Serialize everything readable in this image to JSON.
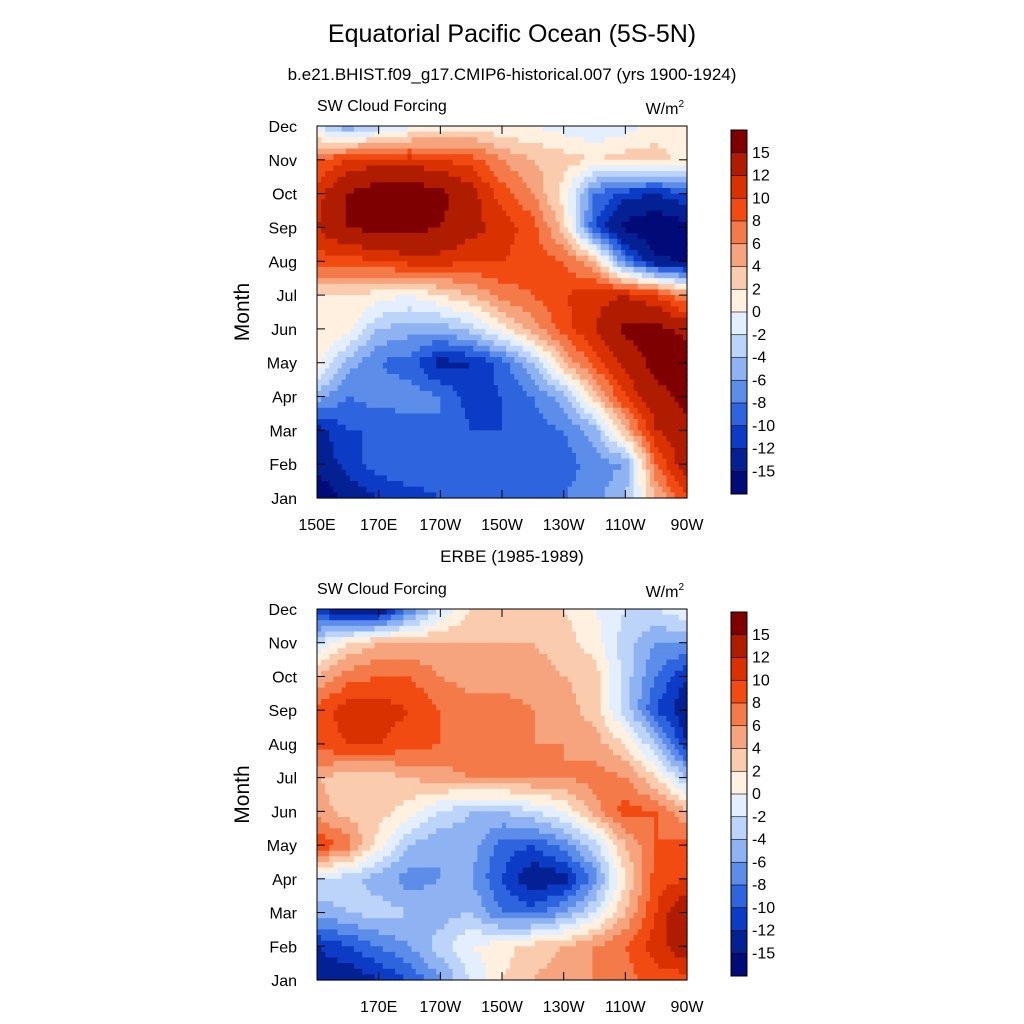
{
  "main_title": "Equatorial Pacific Ocean (5S-5N)",
  "chart_data": [
    {
      "type": "heatmap",
      "subtitle": "b.e21.BHIST.f09_g17.CMIP6-historical.007 (yrs 1900-1924)",
      "left_label": "SW Cloud Forcing",
      "units": "W/m",
      "units_sup": "2",
      "ylabel": "Month",
      "xlabel": "",
      "x_ticks": [
        "150E",
        "170E",
        "170W",
        "150W",
        "130W",
        "110W",
        "90W"
      ],
      "x_values": [
        150,
        170,
        190,
        210,
        230,
        250,
        270
      ],
      "xlim": [
        150,
        270
      ],
      "y_ticks": [
        "Jan",
        "Feb",
        "Mar",
        "Apr",
        "May",
        "Jun",
        "Jul",
        "Aug",
        "Sep",
        "Oct",
        "Nov",
        "Dec"
      ],
      "colorbar_labels": [
        "15",
        "12",
        "10",
        "8",
        "6",
        "4",
        "2",
        "0",
        "-2",
        "-4",
        "-6",
        "-8",
        "-10",
        "-12",
        "-15"
      ],
      "values": [
        [
          -18,
          -14,
          -12,
          -11,
          -10,
          -10,
          -10,
          -9,
          -8,
          -7,
          -4,
          4,
          10
        ],
        [
          -14,
          -11,
          -9,
          -8,
          -9,
          -10,
          -10,
          -9,
          -9,
          -7,
          -6,
          8,
          14
        ],
        [
          -13,
          -10,
          -10,
          -9,
          -8,
          -10,
          -10,
          -9,
          -8,
          -5,
          4,
          12,
          14
        ],
        [
          -5,
          -8,
          -7,
          -7,
          -8,
          -11,
          -10,
          -8,
          -5,
          3,
          10,
          14,
          16
        ],
        [
          1,
          -5,
          -8,
          -9,
          -13,
          -12,
          -9,
          -4,
          4,
          9,
          13,
          16,
          17
        ],
        [
          2,
          1,
          -4,
          -5,
          -5,
          -3,
          1,
          5,
          9,
          12,
          16,
          16,
          14
        ],
        [
          2,
          2,
          1,
          0,
          2,
          4,
          7,
          8,
          10,
          11,
          12,
          10,
          6
        ],
        [
          9,
          9,
          10,
          11,
          11,
          10,
          10,
          9,
          8,
          4,
          -8,
          -14,
          -16
        ],
        [
          12,
          15,
          16,
          16,
          15,
          13,
          11,
          9,
          3,
          -10,
          -16,
          -18,
          -16
        ],
        [
          11,
          15,
          17,
          17,
          16,
          13,
          9,
          6,
          1,
          -8,
          -11,
          -12,
          -10
        ],
        [
          8,
          10,
          11,
          11,
          10,
          9,
          6,
          4,
          3,
          2,
          3,
          3,
          1
        ],
        [
          -2,
          -6,
          -3,
          -1,
          0,
          1,
          0,
          0,
          -1,
          -2,
          -1,
          1,
          0
        ]
      ]
    },
    {
      "type": "heatmap",
      "subtitle": "ERBE (1985-1989)",
      "left_label": "SW Cloud Forcing",
      "units": "W/m",
      "units_sup": "2",
      "ylabel": "Month",
      "xlabel": "",
      "x_ticks": [
        "170E",
        "170W",
        "150W",
        "130W",
        "110W",
        "90W"
      ],
      "x_values": [
        170,
        190,
        210,
        230,
        250,
        270
      ],
      "xlim": [
        150,
        270
      ],
      "y_ticks": [
        "Jan",
        "Feb",
        "Mar",
        "Apr",
        "May",
        "Jun",
        "Jul",
        "Aug",
        "Sep",
        "Oct",
        "Nov",
        "Dec"
      ],
      "colorbar_labels": [
        "15",
        "12",
        "10",
        "8",
        "6",
        "4",
        "2",
        "0",
        "-2",
        "-4",
        "-6",
        "-8",
        "-10",
        "-12",
        "-15"
      ],
      "values": [
        [
          -14,
          -14,
          -12,
          -10,
          -6,
          -2,
          2,
          4,
          5,
          6,
          7,
          9,
          9
        ],
        [
          -12,
          -10,
          -8,
          -6,
          -3,
          0,
          1,
          3,
          4,
          6,
          8,
          11,
          14
        ],
        [
          -5,
          -4,
          -3,
          -4,
          -5,
          -4,
          -8,
          -9,
          -6,
          -2,
          4,
          10,
          15
        ],
        [
          -2,
          -3,
          -5,
          -7,
          -6,
          -6,
          -10,
          -14,
          -13,
          -7,
          2,
          9,
          10
        ],
        [
          10,
          7,
          1,
          -4,
          -6,
          -5,
          -9,
          -10,
          -7,
          -3,
          4,
          8,
          9
        ],
        [
          5,
          3,
          3,
          1,
          -2,
          -4,
          -4,
          -2,
          0,
          5,
          9,
          8,
          4
        ],
        [
          4,
          3,
          3,
          4,
          5,
          6,
          6,
          6,
          6,
          7,
          6,
          2,
          -4
        ],
        [
          9,
          10,
          10,
          9,
          8,
          8,
          7,
          6,
          6,
          5,
          2,
          -4,
          -12
        ],
        [
          9,
          11,
          11,
          10,
          8,
          7,
          7,
          6,
          5,
          3,
          -3,
          -10,
          -14
        ],
        [
          4,
          7,
          8,
          8,
          6,
          5,
          5,
          5,
          4,
          3,
          -3,
          -8,
          -12
        ],
        [
          -2,
          2,
          4,
          4,
          4,
          4,
          4,
          4,
          3,
          1,
          -3,
          -6,
          -6
        ],
        [
          -12,
          -15,
          -15,
          -8,
          -2,
          2,
          2,
          3,
          2,
          0,
          -2,
          -2,
          0
        ]
      ]
    }
  ]
}
